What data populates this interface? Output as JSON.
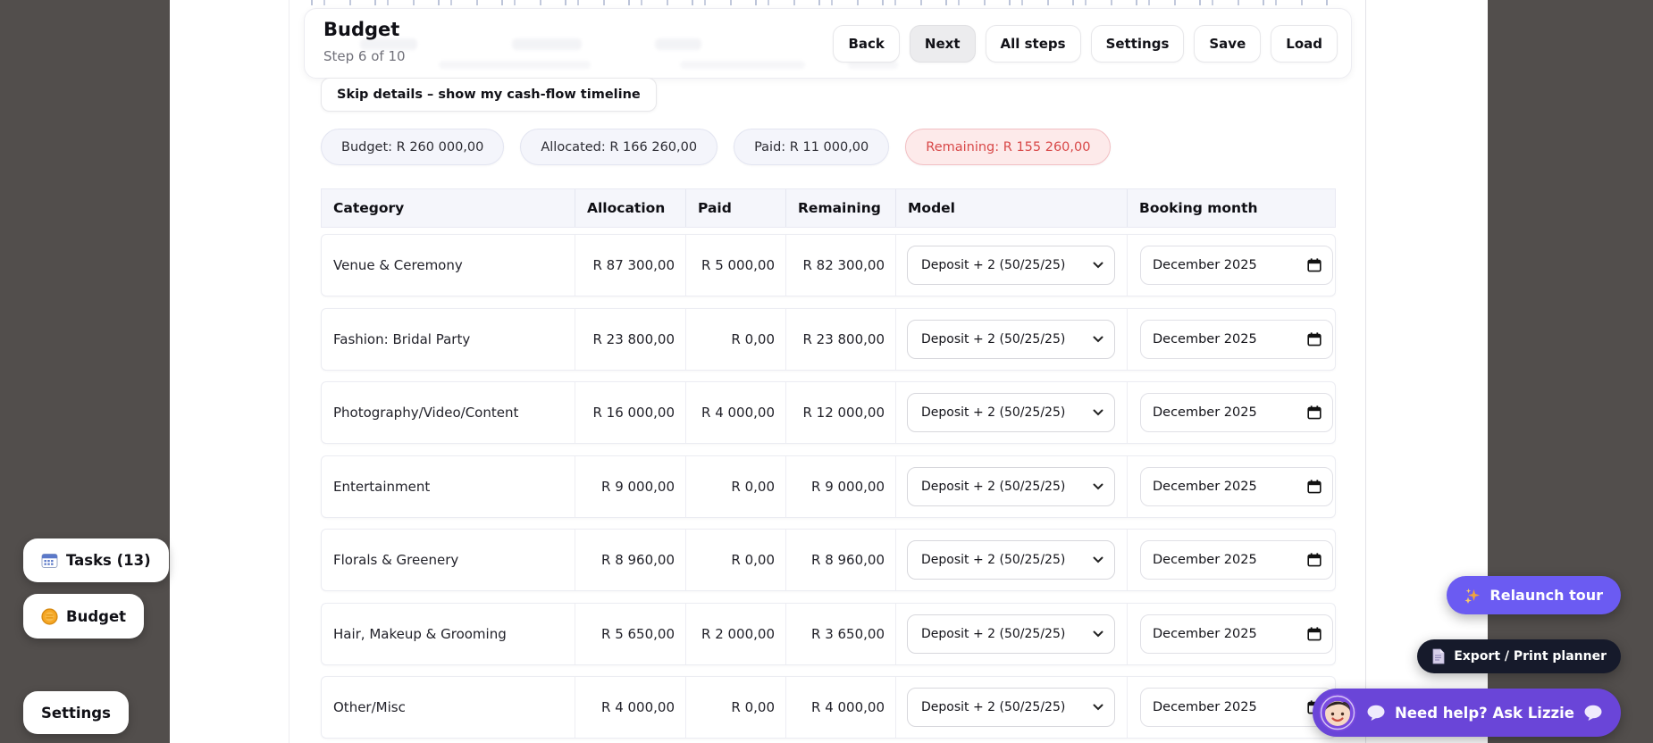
{
  "header": {
    "title": "Budget",
    "step": "Step 6 of 10",
    "buttons": [
      "Back",
      "Next",
      "All steps",
      "Settings",
      "Save",
      "Load"
    ],
    "active_button": "Next"
  },
  "skip_button": "Skip details – show my cash-flow timeline",
  "summary_pills": [
    {
      "label": "Budget: R 260 000,00",
      "variant": "default"
    },
    {
      "label": "Allocated: R 166 260,00",
      "variant": "default"
    },
    {
      "label": "Paid: R 11 000,00",
      "variant": "default"
    },
    {
      "label": "Remaining: R 155 260,00",
      "variant": "danger"
    }
  ],
  "table": {
    "columns": [
      "Category",
      "Allocation",
      "Paid",
      "Remaining",
      "Model",
      "Booking month"
    ],
    "rows": [
      {
        "category": "Venue & Ceremony",
        "allocation": "R 87 300,00",
        "paid": "R 5 000,00",
        "remaining": "R 82 300,00",
        "model": "Deposit + 2 (50/25/25)",
        "booking_month": "December 2025"
      },
      {
        "category": "Fashion: Bridal Party",
        "allocation": "R 23 800,00",
        "paid": "R 0,00",
        "remaining": "R 23 800,00",
        "model": "Deposit + 2 (50/25/25)",
        "booking_month": "December 2025"
      },
      {
        "category": "Photography/Video/Content",
        "allocation": "R 16 000,00",
        "paid": "R 4 000,00",
        "remaining": "R 12 000,00",
        "model": "Deposit + 2 (50/25/25)",
        "booking_month": "December 2025"
      },
      {
        "category": "Entertainment",
        "allocation": "R 9 000,00",
        "paid": "R 0,00",
        "remaining": "R 9 000,00",
        "model": "Deposit + 2 (50/25/25)",
        "booking_month": "December 2025"
      },
      {
        "category": "Florals & Greenery",
        "allocation": "R 8 960,00",
        "paid": "R 0,00",
        "remaining": "R 8 960,00",
        "model": "Deposit + 2 (50/25/25)",
        "booking_month": "December 2025"
      },
      {
        "category": "Hair, Makeup & Grooming",
        "allocation": "R 5 650,00",
        "paid": "R 2 000,00",
        "remaining": "R 3 650,00",
        "model": "Deposit + 2 (50/25/25)",
        "booking_month": "December 2025"
      },
      {
        "category": "Other/Misc",
        "allocation": "R 4 000,00",
        "paid": "R 0,00",
        "remaining": "R 4 000,00",
        "model": "Deposit + 2 (50/25/25)",
        "booking_month": "December 2025"
      }
    ]
  },
  "sidebar": {
    "tasks_label": "Tasks (13)",
    "budget_label": "Budget",
    "settings_label": "Settings"
  },
  "floating": {
    "relaunch_tour": "Relaunch tour",
    "export_print": "Export / Print planner",
    "need_help": "Need help? Ask Lizzie"
  },
  "colors": {
    "backdrop": "#524e4c",
    "accent_purple": "#6b5bf2",
    "deep_purple": "#6a45d8",
    "dark_navy": "#161a2b",
    "danger_text": "#d84848",
    "danger_bg": "#fdeaea",
    "pill_bg": "#f4f5fb",
    "table_header_bg": "#f5f6fb"
  }
}
